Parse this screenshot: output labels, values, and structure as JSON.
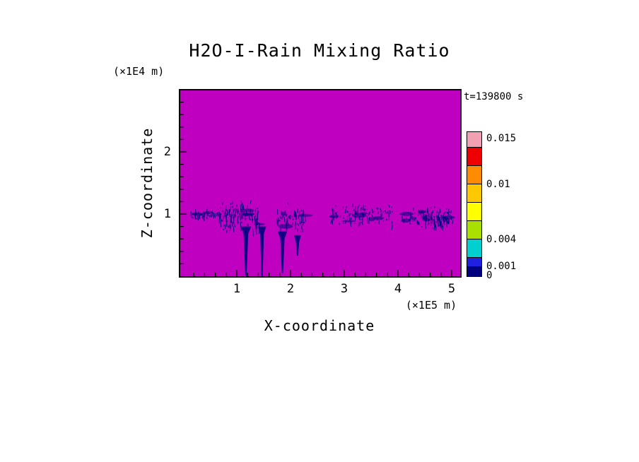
{
  "title": "H2O-I-Rain Mixing Ratio",
  "annotations": {
    "time_label": "t=139800 s",
    "z_unit_label": "(×1E4 m)",
    "x_unit_label": "(×1E5 m)"
  },
  "axes": {
    "x_label": "X-coordinate",
    "z_label": "Z-coordinate",
    "x_tick_labels": [
      "1",
      "2",
      "3",
      "4",
      "5"
    ],
    "z_tick_labels": [
      "2",
      "1"
    ]
  },
  "colorbar": {
    "labels": [
      "0.015",
      "0.01",
      "0.004",
      "0.001",
      "0"
    ],
    "label_values": [
      0.015,
      0.01,
      0.004,
      0.001,
      0
    ]
  },
  "chart_data": {
    "type": "heatmap",
    "title": "H2O-I-Rain Mixing Ratio",
    "xlabel": "X-coordinate",
    "ylabel": "Z-coordinate",
    "x_units": "×1E5 m",
    "z_units": "×1E4 m",
    "x_range": [
      0,
      5.15
    ],
    "z_range": [
      0,
      3.0
    ],
    "x_major_ticks": [
      1,
      2,
      3,
      4,
      5
    ],
    "z_major_ticks": [
      1,
      2
    ],
    "minor_tick_step": 0.2,
    "time_seconds": 139800,
    "background_color": "#C000C0",
    "feature_color": "#000080",
    "colorbar": {
      "boundaries": [
        0,
        0.001,
        0.002,
        0.004,
        0.006,
        0.008,
        0.01,
        0.012,
        0.014,
        0.0157
      ],
      "colors_bottom_to_top": [
        "#000080",
        "#2020E0",
        "#00D0D0",
        "#AAE000",
        "#FFFF00",
        "#FFC800",
        "#FF8C00",
        "#EE0000",
        "#F2A0B4"
      ],
      "labeled_values": [
        0,
        0.001,
        0.004,
        0.01,
        0.015
      ]
    },
    "features": [
      {
        "kind": "band",
        "x": [
          0.15,
          0.67
        ],
        "z": [
          0.9,
          1.09
        ],
        "density": 1.2
      },
      {
        "kind": "band",
        "x": [
          0.67,
          1.43
        ],
        "z": [
          0.69,
          1.23
        ],
        "density": 2.4
      },
      {
        "kind": "streak",
        "x_center": 1.17,
        "top_width": 0.09,
        "z_top": 0.8,
        "z_bottom": 0.0
      },
      {
        "kind": "streak",
        "x_center": 1.47,
        "top_width": 0.07,
        "z_top": 0.8,
        "z_bottom": 0.0
      },
      {
        "kind": "band",
        "x": [
          1.72,
          2.28
        ],
        "z": [
          0.66,
          1.19
        ],
        "density": 1.7
      },
      {
        "kind": "streak",
        "x_center": 1.85,
        "top_width": 0.08,
        "z_top": 0.72,
        "z_bottom": 0.05
      },
      {
        "kind": "streak",
        "x_center": 2.13,
        "top_width": 0.06,
        "z_top": 0.66,
        "z_bottom": 0.33
      },
      {
        "kind": "band",
        "x": [
          2.75,
          3.91
        ],
        "z": [
          0.78,
          1.19
        ],
        "density": 1.4
      },
      {
        "kind": "band",
        "x": [
          4.07,
          5.04
        ],
        "z": [
          0.72,
          1.15
        ],
        "density": 1.3
      },
      {
        "kind": "band",
        "x": [
          4.5,
          4.95
        ],
        "z": [
          0.78,
          1.08
        ],
        "density": 2.0
      }
    ]
  }
}
